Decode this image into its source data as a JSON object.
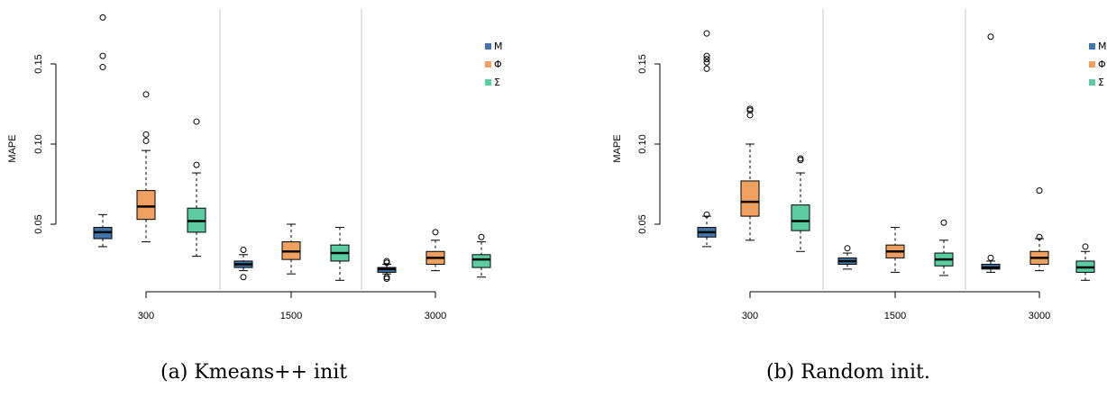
{
  "captions": [
    "(a) Kmeans++ init",
    "(b) Random init."
  ],
  "chart_data": [
    {
      "type": "boxplot",
      "caption": "(a) Kmeans++ init",
      "ylabel": "MAPE",
      "xlabel": "",
      "ylim": [
        0.0,
        0.18
      ],
      "yticks": [
        0.05,
        0.1,
        0.15
      ],
      "ytick_labels": [
        "0.05",
        "0.10",
        "0.15"
      ],
      "categories": [
        "300",
        "1500",
        "3000"
      ],
      "series": [
        {
          "name": "M",
          "color": "#4575a8"
        },
        {
          "name": "Φ",
          "color": "#f0a060"
        },
        {
          "name": "Σ",
          "color": "#5dcca3"
        }
      ],
      "legend_position": "top-right",
      "grid": false,
      "boxes": [
        {
          "group": "300",
          "series": "M",
          "whisker_low": 0.036,
          "q1": 0.041,
          "median": 0.045,
          "q3": 0.048,
          "whisker_high": 0.056,
          "outliers": [
            0.148,
            0.155,
            0.179
          ]
        },
        {
          "group": "300",
          "series": "Φ",
          "whisker_low": 0.039,
          "q1": 0.053,
          "median": 0.061,
          "q3": 0.071,
          "whisker_high": 0.096,
          "outliers": [
            0.102,
            0.106,
            0.131
          ]
        },
        {
          "group": "300",
          "series": "Σ",
          "whisker_low": 0.03,
          "q1": 0.045,
          "median": 0.052,
          "q3": 0.06,
          "whisker_high": 0.082,
          "outliers": [
            0.087,
            0.114
          ]
        },
        {
          "group": "1500",
          "series": "M",
          "whisker_low": 0.021,
          "q1": 0.023,
          "median": 0.025,
          "q3": 0.027,
          "whisker_high": 0.031,
          "outliers": [
            0.017,
            0.034
          ]
        },
        {
          "group": "1500",
          "series": "Φ",
          "whisker_low": 0.019,
          "q1": 0.028,
          "median": 0.033,
          "q3": 0.039,
          "whisker_high": 0.05,
          "outliers": []
        },
        {
          "group": "1500",
          "series": "Σ",
          "whisker_low": 0.015,
          "q1": 0.027,
          "median": 0.032,
          "q3": 0.037,
          "whisker_high": 0.048,
          "outliers": []
        },
        {
          "group": "3000",
          "series": "M",
          "whisker_low": 0.019,
          "q1": 0.02,
          "median": 0.022,
          "q3": 0.023,
          "whisker_high": 0.025,
          "outliers": [
            0.016,
            0.017,
            0.026,
            0.027
          ]
        },
        {
          "group": "3000",
          "series": "Φ",
          "whisker_low": 0.021,
          "q1": 0.025,
          "median": 0.029,
          "q3": 0.033,
          "whisker_high": 0.04,
          "outliers": [
            0.045
          ]
        },
        {
          "group": "3000",
          "series": "Σ",
          "whisker_low": 0.017,
          "q1": 0.023,
          "median": 0.028,
          "q3": 0.031,
          "whisker_high": 0.039,
          "outliers": [
            0.042
          ]
        }
      ]
    },
    {
      "type": "boxplot",
      "caption": "(b) Random init.",
      "ylabel": "MAPE",
      "xlabel": "",
      "ylim": [
        0.0,
        0.18
      ],
      "yticks": [
        0.05,
        0.1,
        0.15
      ],
      "ytick_labels": [
        "0.05",
        "0.10",
        "0.15"
      ],
      "categories": [
        "300",
        "1500",
        "3000"
      ],
      "series": [
        {
          "name": "M",
          "color": "#4575a8"
        },
        {
          "name": "Φ",
          "color": "#f0a060"
        },
        {
          "name": "Σ",
          "color": "#5dcca3"
        }
      ],
      "legend_position": "top-right",
      "grid": false,
      "boxes": [
        {
          "group": "300",
          "series": "M",
          "whisker_low": 0.036,
          "q1": 0.042,
          "median": 0.045,
          "q3": 0.048,
          "whisker_high": 0.055,
          "outliers": [
            0.056,
            0.147,
            0.151,
            0.153,
            0.155,
            0.169
          ]
        },
        {
          "group": "300",
          "series": "Φ",
          "whisker_low": 0.04,
          "q1": 0.055,
          "median": 0.064,
          "q3": 0.077,
          "whisker_high": 0.1,
          "outliers": [
            0.118,
            0.121,
            0.122
          ]
        },
        {
          "group": "300",
          "series": "Σ",
          "whisker_low": 0.033,
          "q1": 0.046,
          "median": 0.052,
          "q3": 0.062,
          "whisker_high": 0.082,
          "outliers": [
            0.09,
            0.091
          ]
        },
        {
          "group": "1500",
          "series": "M",
          "whisker_low": 0.022,
          "q1": 0.025,
          "median": 0.027,
          "q3": 0.029,
          "whisker_high": 0.032,
          "outliers": [
            0.035
          ]
        },
        {
          "group": "1500",
          "series": "Φ",
          "whisker_low": 0.02,
          "q1": 0.029,
          "median": 0.033,
          "q3": 0.037,
          "whisker_high": 0.048,
          "outliers": []
        },
        {
          "group": "1500",
          "series": "Σ",
          "whisker_low": 0.018,
          "q1": 0.024,
          "median": 0.028,
          "q3": 0.032,
          "whisker_high": 0.04,
          "outliers": [
            0.051
          ]
        },
        {
          "group": "3000",
          "series": "M",
          "whisker_low": 0.02,
          "q1": 0.022,
          "median": 0.023,
          "q3": 0.025,
          "whisker_high": 0.027,
          "outliers": [
            0.029,
            0.167
          ]
        },
        {
          "group": "3000",
          "series": "Φ",
          "whisker_low": 0.021,
          "q1": 0.025,
          "median": 0.029,
          "q3": 0.033,
          "whisker_high": 0.041,
          "outliers": [
            0.042,
            0.071
          ]
        },
        {
          "group": "3000",
          "series": "Σ",
          "whisker_low": 0.015,
          "q1": 0.02,
          "median": 0.023,
          "q3": 0.027,
          "whisker_high": 0.033,
          "outliers": [
            0.036
          ]
        }
      ]
    }
  ]
}
